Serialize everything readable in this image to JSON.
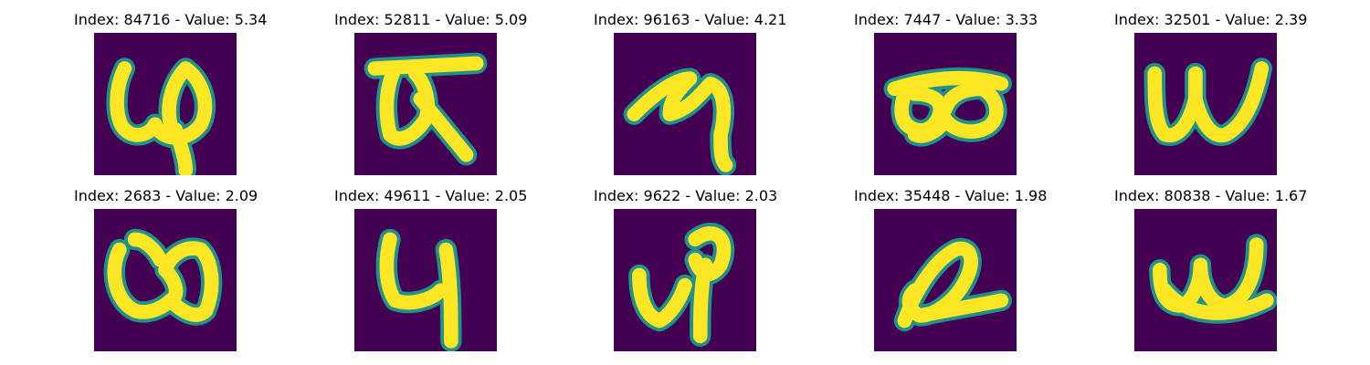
{
  "chart_data": {
    "type": "image-grid",
    "colormap": "viridis",
    "layout": {
      "rows": 2,
      "cols": 5
    },
    "panels": [
      {
        "title": "Index: 84716 - Value: 5.34",
        "index": 84716,
        "value": 5.34,
        "glyph": "glyph-84716"
      },
      {
        "title": "Index: 52811 - Value: 5.09",
        "index": 52811,
        "value": 5.09,
        "glyph": "glyph-52811"
      },
      {
        "title": "Index: 96163 - Value: 4.21",
        "index": 96163,
        "value": 4.21,
        "glyph": "glyph-96163"
      },
      {
        "title": "Index: 7447 - Value: 3.33",
        "index": 7447,
        "value": 3.33,
        "glyph": "glyph-7447"
      },
      {
        "title": "Index: 32501 - Value: 2.39",
        "index": 32501,
        "value": 2.39,
        "glyph": "glyph-32501"
      },
      {
        "title": "Index: 2683 - Value: 2.09",
        "index": 2683,
        "value": 2.09,
        "glyph": "glyph-2683"
      },
      {
        "title": "Index: 49611 - Value: 2.05",
        "index": 49611,
        "value": 2.05,
        "glyph": "glyph-49611"
      },
      {
        "title": "Index: 9622 - Value: 2.03",
        "index": 9622,
        "value": 2.03,
        "glyph": "glyph-9622"
      },
      {
        "title": "Index: 35448 - Value: 1.98",
        "index": 35448,
        "value": 1.98,
        "glyph": "glyph-35448"
      },
      {
        "title": "Index: 80838 - Value: 1.67",
        "index": 80838,
        "value": 1.67,
        "glyph": "glyph-80838"
      }
    ],
    "colors": {
      "background": "#440154",
      "stroke": "#fde725",
      "edge": "#21918c"
    }
  }
}
